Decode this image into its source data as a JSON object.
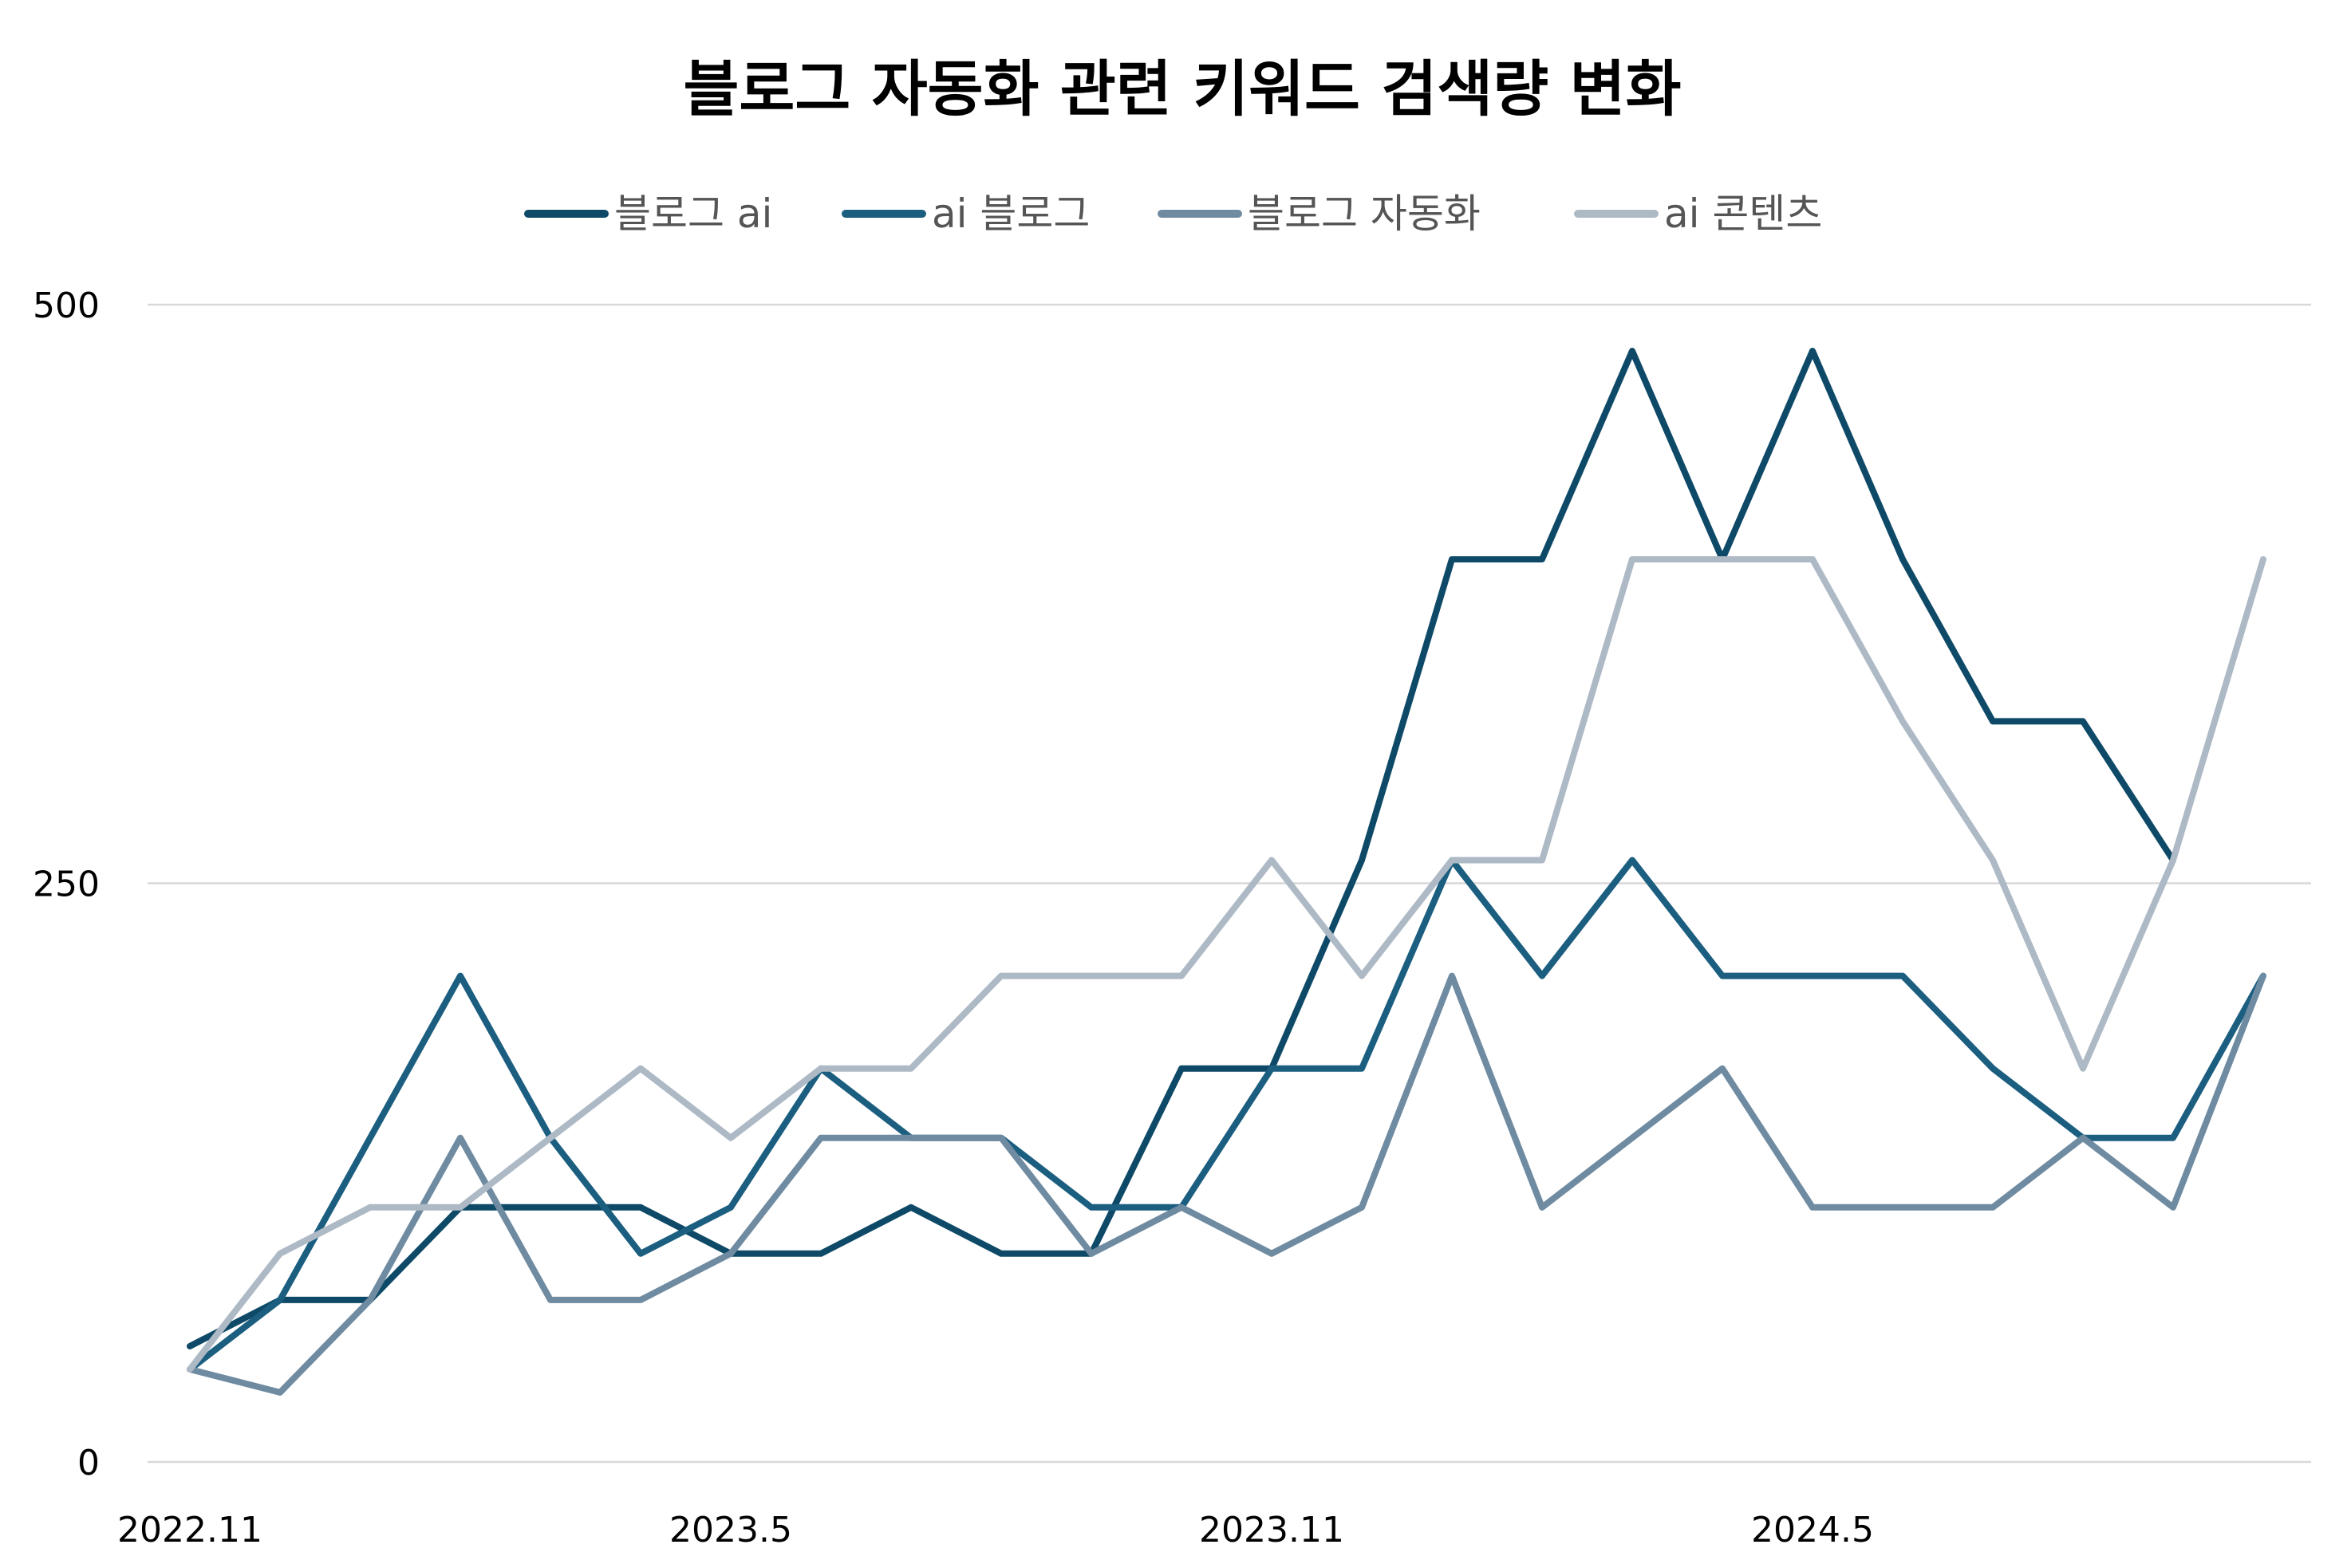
{
  "chart_data": {
    "type": "line",
    "title": "블로그 자동화 관련 키워드 검색량 변화",
    "xlabel": "",
    "ylabel": "",
    "ylim": [
      0,
      500
    ],
    "yticks": [
      0,
      250,
      500
    ],
    "x": [
      "2022.11",
      "2022.12",
      "2023.1",
      "2023.2",
      "2023.3",
      "2023.4",
      "2023.5",
      "2023.6",
      "2023.7",
      "2023.8",
      "2023.9",
      "2023.10",
      "2023.11",
      "2023.12",
      "2024.1",
      "2024.2",
      "2024.3",
      "2024.4",
      "2024.5",
      "2024.6",
      "2024.7",
      "2024.8",
      "2024.9",
      "2024.10"
    ],
    "xtick_labels": [
      {
        "index": 0,
        "label": "2022.11"
      },
      {
        "index": 6,
        "label": "2023.5"
      },
      {
        "index": 12,
        "label": "2023.11"
      },
      {
        "index": 18,
        "label": "2024.5"
      }
    ],
    "grid": true,
    "legend_position": "top",
    "series": [
      {
        "name": "블로그 ai",
        "color": "#0e4a68",
        "values": [
          50,
          70,
          70,
          110,
          110,
          110,
          90,
          90,
          110,
          90,
          90,
          170,
          170,
          260,
          390,
          390,
          480,
          390,
          480,
          390,
          320,
          320,
          260,
          null
        ]
      },
      {
        "name": "ai 블로그",
        "color": "#1b5e80",
        "values": [
          40,
          70,
          140,
          210,
          140,
          90,
          110,
          170,
          140,
          140,
          110,
          110,
          170,
          170,
          260,
          210,
          260,
          210,
          210,
          210,
          170,
          140,
          140,
          210
        ]
      },
      {
        "name": "블로그 자동화",
        "color": "#6f8ba1",
        "values": [
          40,
          30,
          70,
          140,
          70,
          70,
          90,
          140,
          140,
          140,
          90,
          110,
          90,
          110,
          210,
          110,
          140,
          170,
          110,
          110,
          110,
          140,
          110,
          210
        ]
      },
      {
        "name": "ai 콘텐츠",
        "color": "#aeb9c6",
        "values": [
          40,
          90,
          110,
          110,
          140,
          170,
          140,
          170,
          170,
          210,
          210,
          210,
          260,
          210,
          260,
          260,
          390,
          390,
          390,
          320,
          260,
          170,
          260,
          390
        ]
      }
    ]
  }
}
